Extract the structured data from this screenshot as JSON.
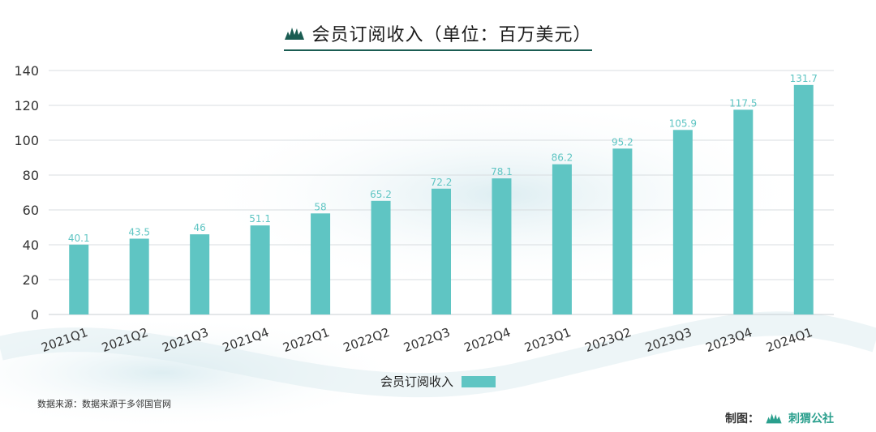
{
  "title": "会员订阅收入（单位：百万美元）",
  "legend_label": "会员订阅收入",
  "source_text": "数据来源：数据来源于多邻国官网",
  "credit_label": "制图：",
  "credit_brand": "刺猬公社",
  "colors": {
    "bar": "#5fc5c3",
    "accent": "#1a5c52",
    "grid": "#d8dde0"
  },
  "chart_data": {
    "type": "bar",
    "title": "会员订阅收入（单位：百万美元）",
    "categories": [
      "2021Q1",
      "2021Q2",
      "2021Q3",
      "2021Q4",
      "2022Q1",
      "2022Q2",
      "2022Q3",
      "2022Q4",
      "2023Q1",
      "2023Q2",
      "2023Q3",
      "2023Q4",
      "2024Q1"
    ],
    "series": [
      {
        "name": "会员订阅收入",
        "values": [
          40.1,
          43.5,
          46,
          51.1,
          58,
          65.2,
          72.2,
          78.1,
          86.2,
          95.2,
          105.9,
          117.5,
          131.7
        ]
      }
    ],
    "value_labels": [
      "40.1",
      "43.5",
      "46",
      "51.1",
      "58",
      "65.2",
      "72.2",
      "78.1",
      "86.2",
      "95.2",
      "105.9",
      "117.5",
      "131.7"
    ],
    "ylim": [
      0,
      140
    ],
    "yticks": [
      "0",
      "20",
      "40",
      "60",
      "80",
      "100",
      "120",
      "140"
    ],
    "grid": true,
    "legend_position": "bottom-center"
  }
}
